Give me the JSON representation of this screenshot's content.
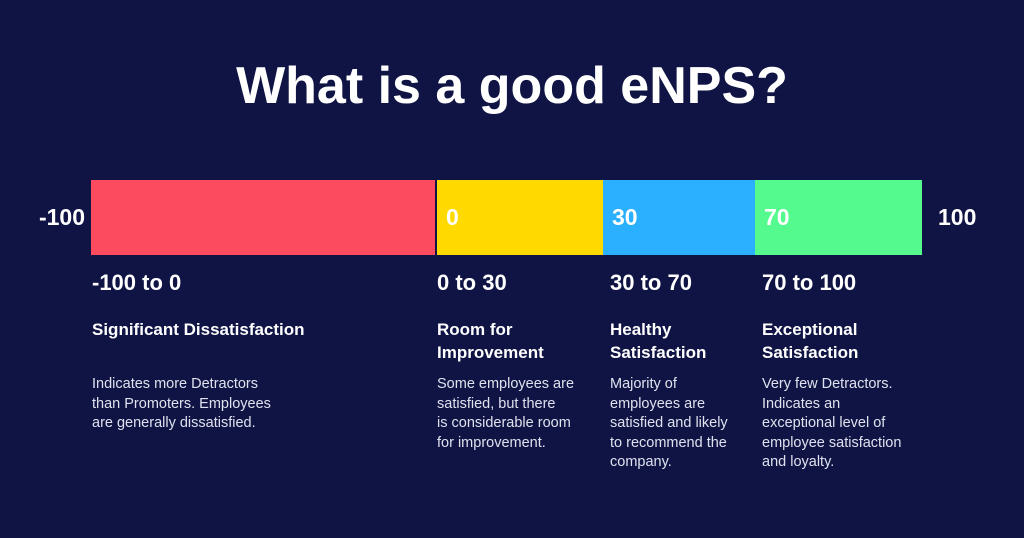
{
  "page": {
    "title": "What is a good eNPS?",
    "background_color": "#101444"
  },
  "chart_data": {
    "type": "bar",
    "subtype": "segmented-horizontal-scale",
    "title": "What is a good eNPS?",
    "axis_range": [
      -100,
      100
    ],
    "tick_labels": [
      "-100",
      "0",
      "30",
      "70",
      "100"
    ],
    "min_label": "-100",
    "max_label": "100",
    "legend_position": "none",
    "grid": false,
    "segments": [
      {
        "label": "Significant Dissatisfaction",
        "range": [
          -100,
          0
        ],
        "color": "#FC4A5E",
        "bar_label": ""
      },
      {
        "label": "Room for Improvement",
        "range": [
          0,
          30
        ],
        "color": "#FFD900",
        "bar_label": "0"
      },
      {
        "label": "Healthy Satisfaction",
        "range": [
          30,
          70
        ],
        "color": "#2BB0FF",
        "bar_label": "30"
      },
      {
        "label": "Exceptional Satisfaction",
        "range": [
          70,
          100
        ],
        "color": "#55FA8E",
        "bar_label": "70"
      }
    ]
  },
  "columns": [
    {
      "range": "-100 to 0",
      "heading": "Significant Dissatisfaction",
      "body": "Indicates more Detractors\nthan Promoters. Employees\nare generally dissatisfied."
    },
    {
      "range": "0 to 30",
      "heading": "Room for\nImprovement",
      "body": "Some employees are\nsatisfied, but there\nis considerable room\nfor improvement."
    },
    {
      "range": "30 to 70",
      "heading": "Healthy\nSatisfaction",
      "body": "Majority of\nemployees are\nsatisfied and likely\nto recommend the\ncompany."
    },
    {
      "range": "70 to 100",
      "heading": "Exceptional\nSatisfaction",
      "body": "Very few Detractors.\nIndicates an\nexceptional level of\nemployee satisfaction\nand loyalty."
    }
  ],
  "colors": {
    "background": "#101444",
    "segment_red": "#FC4A5E",
    "segment_yellow": "#FFD900",
    "segment_blue": "#2BB0FF",
    "segment_green": "#55FA8E",
    "heading_text": "#FFFFFF",
    "body_text": "#DFE2EE"
  }
}
